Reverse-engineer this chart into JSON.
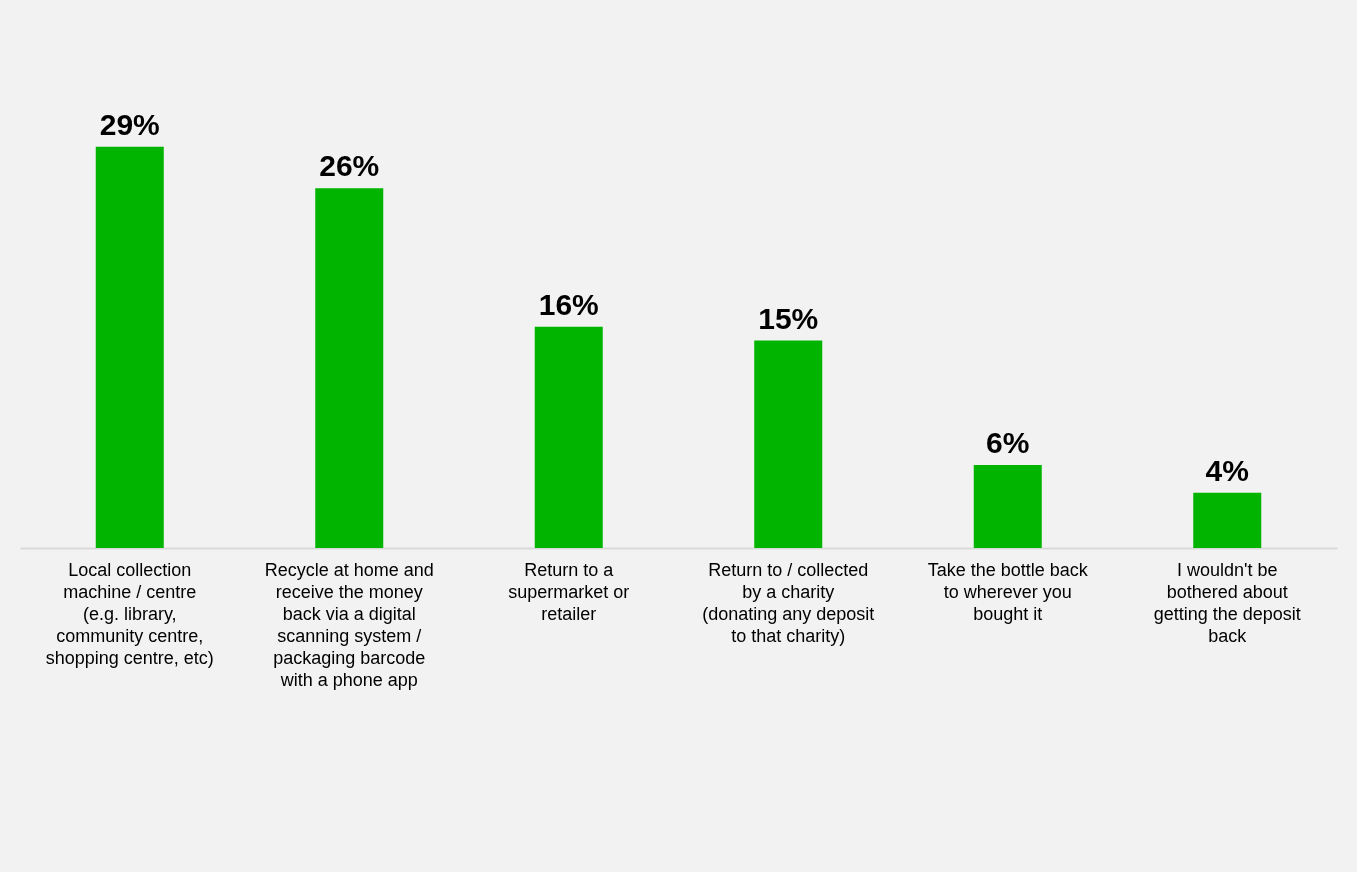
{
  "chart_data": {
    "type": "bar",
    "categories": [
      "Local collection machine / centre (e.g. library, community centre, shopping centre, etc)",
      "Recycle at home and receive the money back via a digital scanning system / packaging barcode with a phone app",
      "Return to a supermarket or retailer",
      "Return to / collected by a charity (donating any deposit to that charity)",
      "Take the bottle back to wherever you bought it",
      "I wouldn't be bothered about getting the deposit back"
    ],
    "values": [
      29,
      26,
      16,
      15,
      6,
      4
    ],
    "value_labels": [
      "29%",
      "26%",
      "16%",
      "15%",
      "6%",
      "4%"
    ],
    "color": "#00b400",
    "grid": false,
    "tick_labels": "x"
  }
}
